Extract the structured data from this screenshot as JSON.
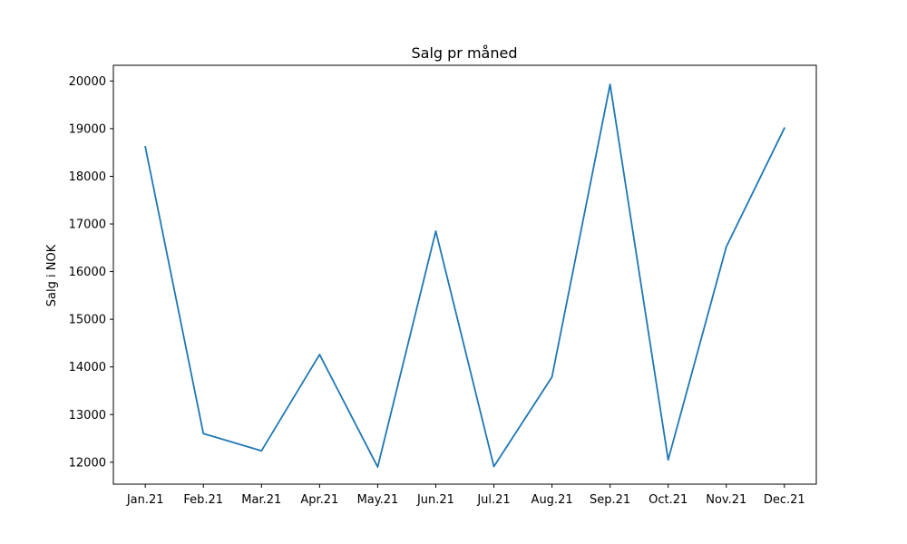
{
  "chart_data": {
    "type": "line",
    "title": "Salg pr måned",
    "xlabel": "",
    "ylabel": "Salg i NOK",
    "categories": [
      "Jan.21",
      "Feb.21",
      "Mar.21",
      "Apr.21",
      "May.21",
      "Jun.21",
      "Jul.21",
      "Aug.21",
      "Sep.21",
      "Oct.21",
      "Nov.21",
      "Dec.21"
    ],
    "series": [
      {
        "values": [
          18620,
          12600,
          12240,
          14260,
          11900,
          16850,
          11910,
          13790,
          19930,
          12050,
          16520,
          19010
        ],
        "color": "#1f77b4"
      }
    ],
    "yticks": [
      12000,
      13000,
      14000,
      15000,
      16000,
      17000,
      18000,
      19000,
      20000
    ],
    "ylim": [
      11540,
      20330
    ],
    "grid": false,
    "legend": "none"
  }
}
